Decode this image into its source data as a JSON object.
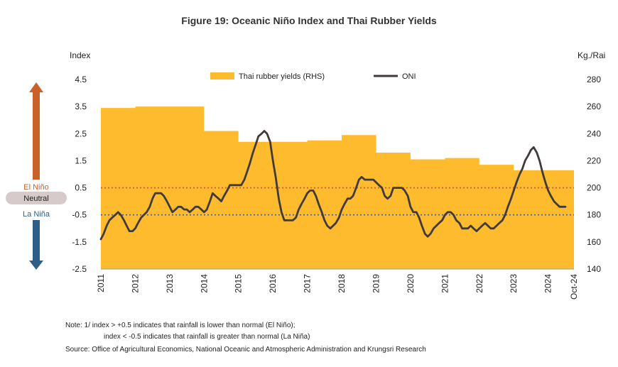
{
  "colors": {
    "area": "#FDBB2D",
    "oni": "#403A3A",
    "el_nino": "#C8612A",
    "la_nina": "#2D5F86",
    "neutral_pill": "#D6CACA",
    "el_nino_line": "#D0541E",
    "la_nina_line": "#3E5FA5"
  },
  "chart_data": {
    "type": "area+line",
    "title": "Figure 19: Oceanic Niño Index and Thai Rubber Yields",
    "left_axis": {
      "label": "Index",
      "ticks": [
        "4.5",
        "3.5",
        "2.5",
        "1.5",
        "0.5",
        "-0.5",
        "-1.5",
        "-2.5"
      ],
      "range": [
        -2.5,
        4.5
      ]
    },
    "right_axis": {
      "label": "Kg./Rai",
      "ticks": [
        "280",
        "260",
        "240",
        "220",
        "200",
        "180",
        "160",
        "140"
      ],
      "range": [
        140,
        280
      ]
    },
    "x_axis": {
      "ticks": [
        "2011",
        "2012",
        "2013",
        "2014",
        "2015",
        "2016",
        "2017",
        "2018",
        "2019",
        "2020",
        "2021",
        "2022",
        "2023",
        "2024",
        "Oct-24"
      ],
      "range": [
        2011.0,
        2024.75
      ]
    },
    "legend": [
      "Thai rubber yields (RHS)",
      "ONI"
    ],
    "thresholds": {
      "el_nino": 0.5,
      "la_nina": -0.5
    },
    "zone_labels": {
      "el_nino": "El Niño",
      "neutral": "Neutral",
      "la_nina": "La Niña"
    },
    "series": [
      {
        "name": "Thai rubber yields (RHS)",
        "axis": "right",
        "kind": "area-step",
        "points": [
          [
            2011.0,
            259
          ],
          [
            2012.0,
            259
          ],
          [
            2012.0,
            260
          ],
          [
            2014.0,
            260
          ],
          [
            2014.0,
            242
          ],
          [
            2015.0,
            242
          ],
          [
            2015.0,
            234
          ],
          [
            2017.0,
            234
          ],
          [
            2017.0,
            235
          ],
          [
            2018.0,
            235
          ],
          [
            2018.0,
            239
          ],
          [
            2019.0,
            239
          ],
          [
            2019.0,
            226
          ],
          [
            2020.0,
            226
          ],
          [
            2020.0,
            221
          ],
          [
            2021.0,
            221
          ],
          [
            2021.0,
            222
          ],
          [
            2022.0,
            222
          ],
          [
            2022.0,
            217
          ],
          [
            2023.0,
            217
          ],
          [
            2023.0,
            213
          ],
          [
            2024.75,
            213
          ]
        ]
      },
      {
        "name": "ONI",
        "axis": "left",
        "kind": "line",
        "points": [
          [
            2011.0,
            -1.4
          ],
          [
            2011.08,
            -1.2
          ],
          [
            2011.17,
            -0.9
          ],
          [
            2011.25,
            -0.7
          ],
          [
            2011.33,
            -0.6
          ],
          [
            2011.42,
            -0.5
          ],
          [
            2011.5,
            -0.4
          ],
          [
            2011.58,
            -0.5
          ],
          [
            2011.67,
            -0.7
          ],
          [
            2011.75,
            -0.9
          ],
          [
            2011.83,
            -1.1
          ],
          [
            2011.92,
            -1.1
          ],
          [
            2012.0,
            -1.0
          ],
          [
            2012.08,
            -0.8
          ],
          [
            2012.17,
            -0.6
          ],
          [
            2012.25,
            -0.5
          ],
          [
            2012.33,
            -0.4
          ],
          [
            2012.42,
            -0.2
          ],
          [
            2012.5,
            0.1
          ],
          [
            2012.58,
            0.3
          ],
          [
            2012.67,
            0.3
          ],
          [
            2012.75,
            0.3
          ],
          [
            2012.83,
            0.2
          ],
          [
            2012.92,
            0.0
          ],
          [
            2013.0,
            -0.2
          ],
          [
            2013.08,
            -0.4
          ],
          [
            2013.17,
            -0.3
          ],
          [
            2013.25,
            -0.2
          ],
          [
            2013.33,
            -0.2
          ],
          [
            2013.42,
            -0.3
          ],
          [
            2013.5,
            -0.3
          ],
          [
            2013.58,
            -0.4
          ],
          [
            2013.67,
            -0.3
          ],
          [
            2013.75,
            -0.2
          ],
          [
            2013.83,
            -0.2
          ],
          [
            2013.92,
            -0.3
          ],
          [
            2014.0,
            -0.4
          ],
          [
            2014.08,
            -0.3
          ],
          [
            2014.17,
            0.0
          ],
          [
            2014.25,
            0.3
          ],
          [
            2014.33,
            0.2
          ],
          [
            2014.42,
            0.1
          ],
          [
            2014.5,
            0.0
          ],
          [
            2014.58,
            0.2
          ],
          [
            2014.67,
            0.4
          ],
          [
            2014.75,
            0.6
          ],
          [
            2014.83,
            0.6
          ],
          [
            2014.92,
            0.6
          ],
          [
            2015.0,
            0.6
          ],
          [
            2015.08,
            0.6
          ],
          [
            2015.17,
            0.8
          ],
          [
            2015.25,
            1.1
          ],
          [
            2015.33,
            1.4
          ],
          [
            2015.42,
            1.8
          ],
          [
            2015.5,
            2.1
          ],
          [
            2015.58,
            2.4
          ],
          [
            2015.67,
            2.5
          ],
          [
            2015.75,
            2.6
          ],
          [
            2015.83,
            2.5
          ],
          [
            2015.92,
            2.2
          ],
          [
            2016.0,
            1.5
          ],
          [
            2016.08,
            0.9
          ],
          [
            2016.17,
            0.1
          ],
          [
            2016.25,
            -0.4
          ],
          [
            2016.33,
            -0.7
          ],
          [
            2016.42,
            -0.7
          ],
          [
            2016.5,
            -0.7
          ],
          [
            2016.58,
            -0.7
          ],
          [
            2016.67,
            -0.6
          ],
          [
            2016.75,
            -0.3
          ],
          [
            2016.83,
            -0.1
          ],
          [
            2016.92,
            0.1
          ],
          [
            2017.0,
            0.3
          ],
          [
            2017.08,
            0.4
          ],
          [
            2017.17,
            0.4
          ],
          [
            2017.25,
            0.2
          ],
          [
            2017.33,
            -0.1
          ],
          [
            2017.42,
            -0.4
          ],
          [
            2017.5,
            -0.7
          ],
          [
            2017.58,
            -0.9
          ],
          [
            2017.67,
            -1.0
          ],
          [
            2017.75,
            -0.9
          ],
          [
            2017.83,
            -0.8
          ],
          [
            2017.92,
            -0.6
          ],
          [
            2018.0,
            -0.3
          ],
          [
            2018.08,
            -0.1
          ],
          [
            2018.17,
            0.1
          ],
          [
            2018.25,
            0.1
          ],
          [
            2018.33,
            0.2
          ],
          [
            2018.42,
            0.5
          ],
          [
            2018.5,
            0.8
          ],
          [
            2018.58,
            0.9
          ],
          [
            2018.67,
            0.8
          ],
          [
            2018.75,
            0.8
          ],
          [
            2018.83,
            0.8
          ],
          [
            2018.92,
            0.8
          ],
          [
            2019.0,
            0.7
          ],
          [
            2019.08,
            0.6
          ],
          [
            2019.17,
            0.5
          ],
          [
            2019.25,
            0.2
          ],
          [
            2019.33,
            0.1
          ],
          [
            2019.42,
            0.2
          ],
          [
            2019.5,
            0.5
          ],
          [
            2019.58,
            0.5
          ],
          [
            2019.67,
            0.5
          ],
          [
            2019.75,
            0.5
          ],
          [
            2019.83,
            0.4
          ],
          [
            2019.92,
            0.2
          ],
          [
            2020.0,
            -0.2
          ],
          [
            2020.08,
            -0.4
          ],
          [
            2020.17,
            -0.4
          ],
          [
            2020.25,
            -0.6
          ],
          [
            2020.33,
            -0.9
          ],
          [
            2020.42,
            -1.2
          ],
          [
            2020.5,
            -1.3
          ],
          [
            2020.58,
            -1.2
          ],
          [
            2020.67,
            -1.0
          ],
          [
            2020.75,
            -0.9
          ],
          [
            2020.83,
            -0.8
          ],
          [
            2020.92,
            -0.7
          ],
          [
            2021.0,
            -0.5
          ],
          [
            2021.08,
            -0.4
          ],
          [
            2021.17,
            -0.4
          ],
          [
            2021.25,
            -0.5
          ],
          [
            2021.33,
            -0.7
          ],
          [
            2021.42,
            -0.8
          ],
          [
            2021.5,
            -1.0
          ],
          [
            2021.58,
            -1.0
          ],
          [
            2021.67,
            -1.0
          ],
          [
            2021.75,
            -0.9
          ],
          [
            2021.83,
            -1.0
          ],
          [
            2021.92,
            -1.1
          ],
          [
            2022.0,
            -1.0
          ],
          [
            2022.08,
            -0.9
          ],
          [
            2022.17,
            -0.8
          ],
          [
            2022.25,
            -0.9
          ],
          [
            2022.33,
            -1.0
          ],
          [
            2022.42,
            -1.0
          ],
          [
            2022.5,
            -0.9
          ],
          [
            2022.58,
            -0.8
          ],
          [
            2022.67,
            -0.7
          ],
          [
            2022.75,
            -0.5
          ],
          [
            2022.83,
            -0.2
          ],
          [
            2022.92,
            0.1
          ],
          [
            2023.0,
            0.4
          ],
          [
            2023.08,
            0.7
          ],
          [
            2023.17,
            1.0
          ],
          [
            2023.25,
            1.2
          ],
          [
            2023.33,
            1.5
          ],
          [
            2023.42,
            1.7
          ],
          [
            2023.5,
            1.9
          ],
          [
            2023.58,
            2.0
          ],
          [
            2023.67,
            1.8
          ],
          [
            2023.75,
            1.5
          ],
          [
            2023.83,
            1.1
          ],
          [
            2023.92,
            0.7
          ],
          [
            2024.0,
            0.4
          ],
          [
            2024.08,
            0.2
          ],
          [
            2024.17,
            0.0
          ],
          [
            2024.25,
            -0.1
          ],
          [
            2024.33,
            -0.2
          ],
          [
            2024.42,
            -0.2
          ],
          [
            2024.5,
            -0.2
          ]
        ]
      }
    ]
  },
  "notes": {
    "line1": "Note: 1/ index > +0.5 indicates that rainfall is lower than normal (El Niño);",
    "line2": "index < -0.5 indicates that rainfall is greater than normal (La Niña)",
    "source": "Source: Office of Agricultural Economics, National Oceanic and Atmospheric Administration and Krungsri Research"
  }
}
